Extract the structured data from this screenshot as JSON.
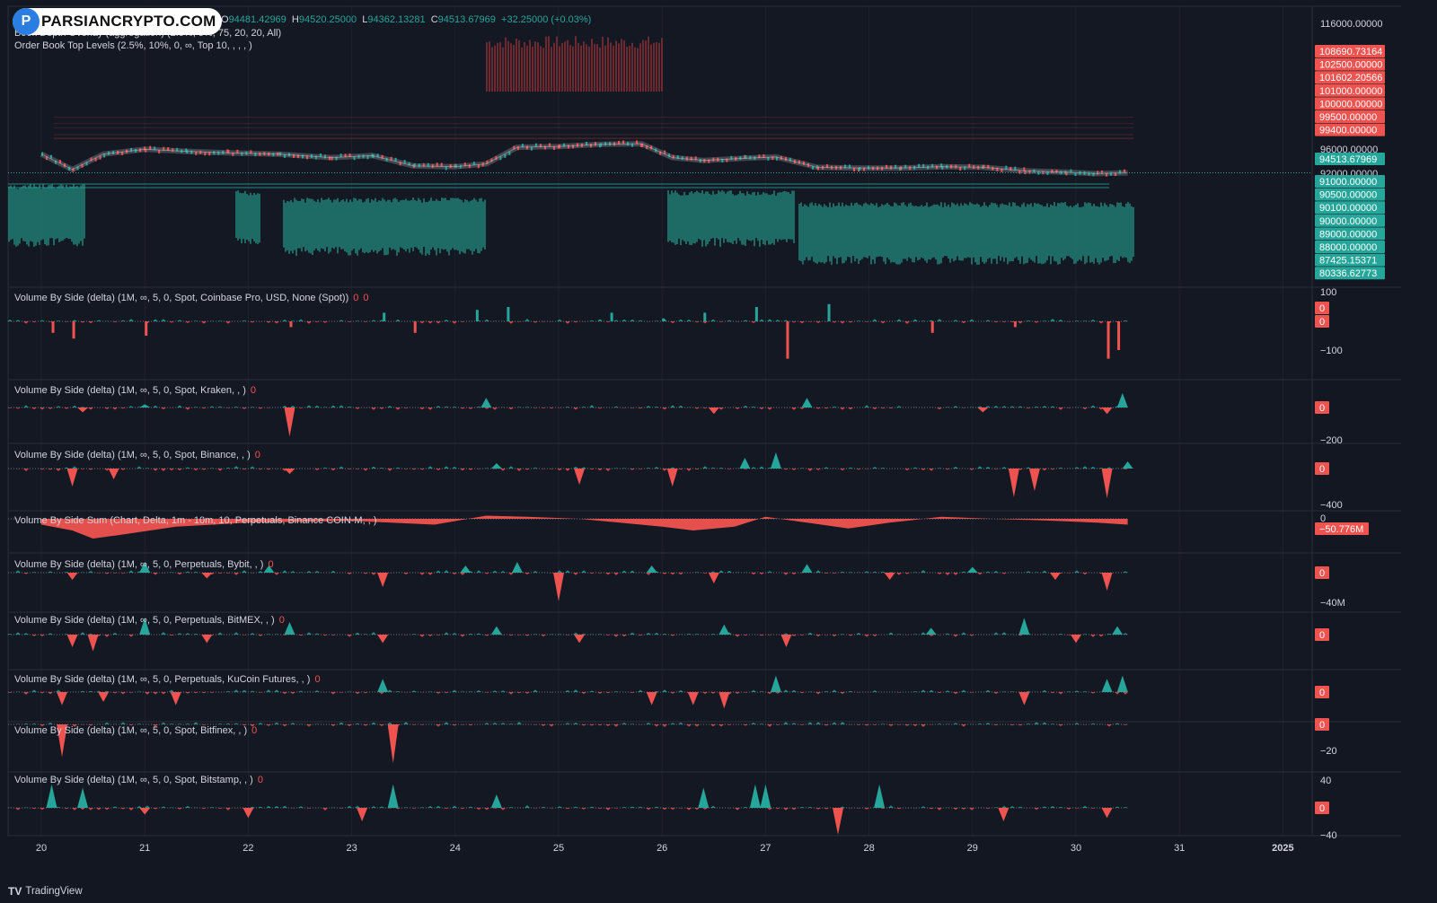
{
  "brand": {
    "logo_text": "PARSIANCRYPTO.COM",
    "footer": "TradingView",
    "footer_icon": "tradingview-logo-icon"
  },
  "ohlc": {
    "o_key": "O",
    "o": "94481.42969",
    "h_key": "H",
    "h": "94520.25000",
    "l_key": "L",
    "l": "94362.13281",
    "c_key": "C",
    "c": "94513.67969",
    "change": "+32.25000 (+0.03%)"
  },
  "indicators": {
    "depth_overlay": "Book Depth Overlay (aggregation) (2.5%, 5%, 75, 20, 20, All)",
    "top_levels": "Order Book Top Levels (2.5%, 10%, 0, ∞, Top 10, , , , )"
  },
  "colors": {
    "up": "#26a69a",
    "down": "#ef5350",
    "bg": "#131722",
    "grid": "#1e222d",
    "text": "#d1d4dc"
  },
  "price_axis": {
    "top_label": "116000.00000",
    "mid_labels": [
      "96000.00000",
      "92000.00000"
    ],
    "current": "94513.67969",
    "ask_labels": [
      "108690.73164",
      "102500.00000",
      "101602.20566",
      "101000.00000",
      "100000.00000",
      "99500.00000",
      "99400.00000"
    ],
    "bid_labels": [
      "91000.00000",
      "90500.00000",
      "90100.00000",
      "90000.00000",
      "89000.00000",
      "88000.00000",
      "87425.15371",
      "80336.62773"
    ]
  },
  "panes": [
    {
      "label": "Volume By Side (delta) (1M, ∞, 5, 0, Spot, Coinbase Pro, USD, None (Spot))",
      "values": [
        "0",
        "0"
      ],
      "axis": [
        "100",
        "0",
        "0",
        "−100"
      ]
    },
    {
      "label": "Volume By Side (delta) (1M, ∞, 5, 0, Spot, Kraken, , )",
      "values": [
        "0"
      ],
      "axis": [
        "0",
        "−200"
      ]
    },
    {
      "label": "Volume By Side (delta) (1M, ∞, 5, 0, Spot, Binance, , )",
      "values": [
        "0"
      ],
      "axis": [
        "0",
        "−400"
      ]
    },
    {
      "label": "Volume By Side Sum (Chart, Delta, 1m - 10m, 10, Perpetuals, Binance COIN-M, , )",
      "values": [],
      "axis": [
        "0",
        "−50.776M"
      ]
    },
    {
      "label": "Volume By Side (delta) (1M, ∞, 5, 0, Perpetuals, Bybit, , )",
      "values": [
        "0"
      ],
      "axis": [
        "0",
        "−40M"
      ]
    },
    {
      "label": "Volume By Side (delta) (1M, ∞, 5, 0, Perpetuals, BitMEX, , )",
      "values": [
        "0"
      ],
      "axis": [
        "0"
      ]
    },
    {
      "label": "Volume By Side (delta) (1M, ∞, 5, 0, Perpetuals, KuCoin Futures, , )",
      "values": [
        "0"
      ],
      "axis": [
        "0"
      ]
    },
    {
      "label": "Volume By Side (delta) (1M, ∞, 5, 0, Spot, Bitfinex, , )",
      "values": [
        "0"
      ],
      "axis": [
        "0",
        "−20"
      ]
    },
    {
      "label": "Volume By Side (delta) (1M, ∞, 5, 0, Spot, Bitstamp, , )",
      "values": [
        "0"
      ],
      "axis": [
        "40",
        "0",
        "−40"
      ]
    }
  ],
  "chart_data": {
    "type": "line",
    "x_ticks": [
      "20",
      "21",
      "22",
      "23",
      "24",
      "25",
      "26",
      "27",
      "28",
      "29",
      "30",
      "31",
      "2025"
    ],
    "price": {
      "name": "",
      "x_days": [
        20.0,
        20.3,
        20.6,
        21.0,
        21.4,
        21.8,
        22.3,
        22.8,
        23.2,
        23.6,
        24.0,
        24.3,
        24.6,
        25.0,
        25.4,
        25.8,
        26.1,
        26.4,
        26.8,
        27.1,
        27.5,
        27.9,
        28.3,
        28.7,
        29.1,
        29.5,
        29.9,
        30.2,
        30.5
      ],
      "close": [
        97200,
        95000,
        97200,
        97900,
        97600,
        97400,
        97200,
        96700,
        97000,
        95500,
        95400,
        95800,
        98200,
        98300,
        98600,
        98700,
        96700,
        96300,
        96600,
        96800,
        95300,
        95200,
        95200,
        95400,
        95300,
        94800,
        94600,
        94400,
        94513.68
      ]
    },
    "ask_levels": [
      108690.73164,
      102500,
      101602.20566,
      101000,
      100000,
      99500,
      99400
    ],
    "bid_levels": [
      91000,
      90500,
      90100,
      90000,
      89000,
      88000,
      87425.15371,
      80336.62773
    ],
    "delta_panes": {
      "coinbase_pro": {
        "x": [
          20.1,
          20.3,
          21.0,
          22.4,
          23.3,
          23.6,
          24.2,
          24.5,
          25.5,
          26.0,
          26.4,
          26.9,
          27.2,
          27.6,
          28.6,
          29.4,
          30.3,
          30.4
        ],
        "y": [
          -40,
          -60,
          -50,
          -20,
          30,
          -40,
          40,
          50,
          30,
          10,
          30,
          50,
          -130,
          60,
          -40,
          -20,
          -130,
          -100
        ]
      },
      "kraken": {
        "x": [
          20.4,
          21.0,
          22.4,
          24.3,
          26.5,
          27.4,
          29.1,
          30.3,
          30.45
        ],
        "y": [
          -30,
          20,
          -180,
          60,
          -40,
          60,
          -30,
          -40,
          90
        ]
      },
      "binance": {
        "x": [
          20.3,
          20.7,
          22.4,
          24.4,
          25.2,
          26.1,
          26.8,
          27.1,
          29.4,
          29.6,
          30.3,
          30.5
        ],
        "y": [
          -200,
          -120,
          -60,
          60,
          -180,
          -200,
          120,
          180,
          -320,
          -250,
          -330,
          80
        ]
      },
      "binance_coinm_sum": {
        "x": [
          20.0,
          20.3,
          20.5,
          20.8,
          21.3,
          22.0,
          23.0,
          23.8,
          24.3,
          24.7,
          25.2,
          26.0,
          26.3,
          26.7,
          27.0,
          27.4,
          27.8,
          28.2,
          28.7,
          29.2,
          29.8,
          30.2,
          30.5
        ],
        "y": [
          -15,
          -30,
          -50.776,
          -40,
          -20,
          -10,
          -5,
          -15,
          8,
          5,
          0,
          -20,
          -30,
          -20,
          5,
          -10,
          -25,
          -10,
          5,
          0,
          -5,
          -10,
          -15
        ]
      },
      "bybit": {
        "x": [
          20.3,
          21.0,
          21.6,
          22.2,
          23.3,
          24.1,
          24.6,
          25.0,
          25.9,
          26.5,
          27.4,
          28.2,
          29.0,
          29.8,
          30.3
        ],
        "y": [
          -10,
          15,
          -8,
          10,
          -20,
          10,
          15,
          -40,
          10,
          -15,
          12,
          -10,
          8,
          -10,
          -25
        ]
      },
      "bitmex": {
        "x": [
          20.3,
          20.5,
          21.0,
          21.6,
          22.4,
          23.3,
          24.4,
          25.2,
          26.6,
          27.2,
          28.6,
          29.5,
          30.0,
          30.4
        ],
        "y": [
          -15,
          -20,
          20,
          -10,
          15,
          -10,
          10,
          -10,
          12,
          -15,
          8,
          20,
          -10,
          10
        ]
      },
      "kucoin_futures": {
        "x": [
          20.2,
          20.6,
          21.3,
          23.3,
          25.9,
          26.3,
          26.6,
          27.1,
          29.5,
          30.3,
          30.45
        ],
        "y": [
          -20,
          -15,
          -20,
          20,
          -20,
          -20,
          -25,
          25,
          -20,
          20,
          25
        ]
      },
      "bitfinex": {
        "x": [
          20.2,
          23.4
        ],
        "y": [
          -25,
          -30
        ]
      },
      "bitstamp": {
        "x": [
          20.1,
          20.4,
          21.0,
          22.0,
          23.1,
          23.4,
          24.4,
          26.4,
          26.9,
          27.0,
          27.7,
          28.1,
          29.3,
          30.3
        ],
        "y": [
          35,
          30,
          -10,
          -15,
          -20,
          35,
          20,
          30,
          35,
          35,
          -40,
          35,
          -20,
          -15
        ]
      }
    }
  }
}
